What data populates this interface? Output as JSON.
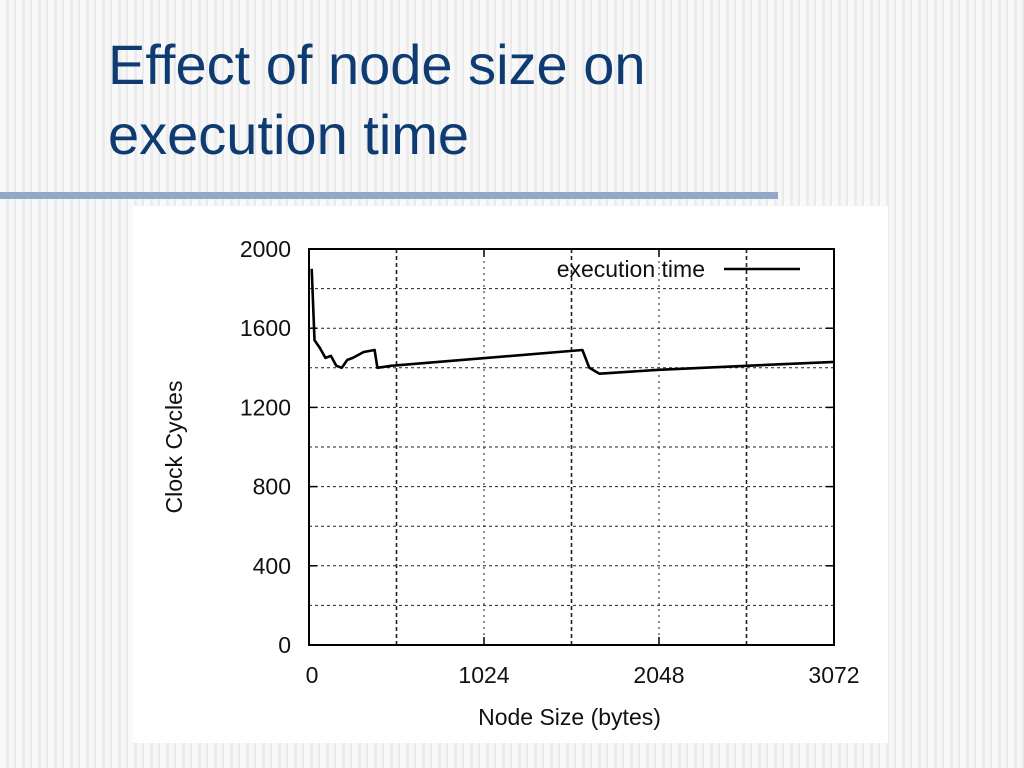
{
  "slide": {
    "title_line1": "Effect of node size on",
    "title_line2": "execution time"
  },
  "colors": {
    "title": "#0e3c72",
    "rule": "#8fa9c6",
    "series": "#000000"
  },
  "chart_data": {
    "type": "line",
    "title": "",
    "xlabel": "Node Size (bytes)",
    "ylabel": "Clock Cycles",
    "xlim": [
      0,
      3072
    ],
    "ylim": [
      0,
      2000
    ],
    "xticks": [
      0,
      1024,
      2048,
      3072
    ],
    "xtick_labels": [
      "0",
      "1024",
      "2048",
      "3072"
    ],
    "yticks": [
      0,
      400,
      800,
      1200,
      1600,
      2000
    ],
    "ytick_labels": [
      "0",
      "400",
      "800",
      "1200",
      "1600",
      "2000"
    ],
    "grid": true,
    "legend_position": "top-right",
    "series": [
      {
        "name": "execution time",
        "x": [
          16,
          32,
          64,
          96,
          128,
          160,
          192,
          224,
          256,
          320,
          384,
          400,
          480,
          1600,
          1640,
          1700,
          2048,
          2560,
          3072
        ],
        "y": [
          1900,
          1540,
          1500,
          1450,
          1460,
          1410,
          1400,
          1440,
          1450,
          1480,
          1490,
          1400,
          1410,
          1490,
          1400,
          1370,
          1390,
          1410,
          1430
        ]
      }
    ]
  }
}
